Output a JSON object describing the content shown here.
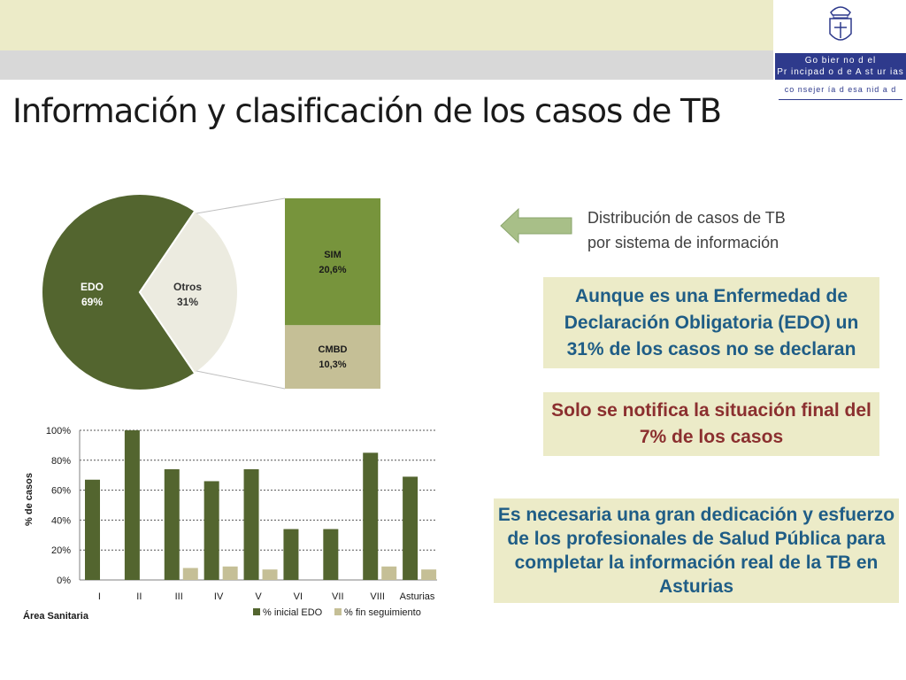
{
  "header": {
    "title": "Información y clasificación de los casos de TB",
    "gov_line1": "Go bier no d el",
    "gov_line2": "Pr incipad o d e A st ur ias",
    "consejeria": "co nsejer ía d esa nid a d"
  },
  "callouts": {
    "distribution_line1": "Distribución de casos de TB",
    "distribution_line2": "por  sistema de información",
    "box1": "Aunque es una Enfermedad de Declaración Obligatoria (EDO) un 31% de los casos no se declaran",
    "box2": "Solo se notifica la situación final del 7% de los casos",
    "box3": "Es necesaria una gran dedicación y esfuerzo de los profesionales de Salud Pública para completar la información real de la TB en Asturias"
  },
  "colors": {
    "edo": "#53652f",
    "otros": "#ecebe0",
    "sim": "#77943c",
    "cmbd": "#c5bf96",
    "seguimiento": "#c5bf96",
    "title_blue": "#1f5d86",
    "title_red": "#8b2f2f"
  },
  "chart_data": [
    {
      "type": "pie",
      "slices": [
        {
          "label": "EDO",
          "value_label": "69%",
          "value": 69
        },
        {
          "label": "Otros",
          "value_label": "31%",
          "value": 31
        }
      ],
      "breakdown": [
        {
          "label": "SIM",
          "value_label": "20,6%",
          "value": 20.6
        },
        {
          "label": "CMBD",
          "value_label": "10,3%",
          "value": 10.3
        }
      ]
    },
    {
      "type": "bar",
      "xlabel": "Área Sanitaria",
      "ylabel": "% de casos",
      "ylim": [
        0,
        100
      ],
      "yticks": [
        "0%",
        "20%",
        "40%",
        "60%",
        "80%",
        "100%"
      ],
      "grid": true,
      "legend_position": "bottom",
      "categories": [
        "I",
        "II",
        "III",
        "IV",
        "V",
        "VI",
        "VII",
        "VIII",
        "Asturias"
      ],
      "series": [
        {
          "name": "% inicial EDO",
          "values": [
            67,
            100,
            74,
            66,
            74,
            34,
            34,
            85,
            69
          ]
        },
        {
          "name": "% fin seguimiento",
          "values": [
            0,
            0,
            8,
            9,
            7,
            0,
            0,
            9,
            7
          ]
        }
      ]
    }
  ]
}
